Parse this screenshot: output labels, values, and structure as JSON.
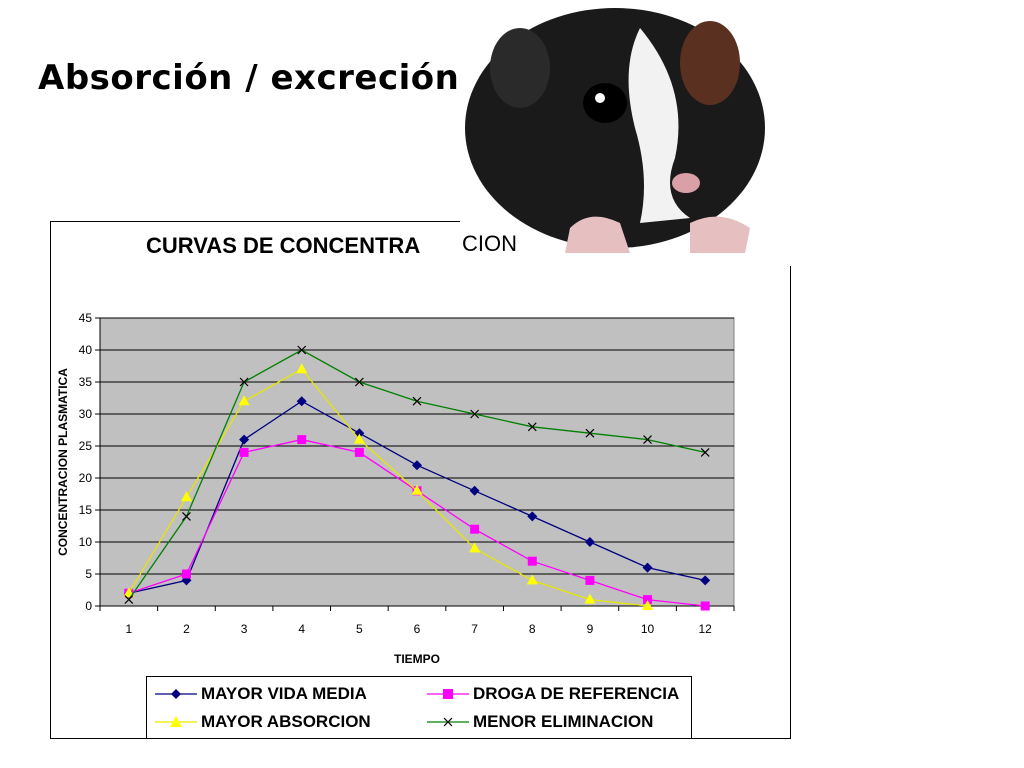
{
  "slide": {
    "title": "Absorción / excreción"
  },
  "photo": {
    "caption": "CION"
  },
  "chart_data": {
    "type": "line",
    "title": "CURVAS DE CONCENTRA",
    "xlabel": "TIEMPO",
    "ylabel": "CONCENTRACION PLASMATICA",
    "categories": [
      "1",
      "2",
      "3",
      "4",
      "5",
      "6",
      "7",
      "8",
      "9",
      "10",
      "12"
    ],
    "ylim": [
      0,
      45
    ],
    "yticks": [
      0,
      5,
      10,
      15,
      20,
      25,
      30,
      35,
      40,
      45
    ],
    "grid": true,
    "legend_position": "bottom",
    "series": [
      {
        "name": "MAYOR VIDA MEDIA",
        "color": "#000080",
        "marker": "diamond",
        "values": [
          2,
          4,
          26,
          32,
          27,
          22,
          18,
          14,
          10,
          6,
          4
        ]
      },
      {
        "name": "DROGA DE REFERENCIA",
        "color": "#ff00ff",
        "marker": "square",
        "values": [
          2,
          5,
          24,
          26,
          24,
          18,
          12,
          7,
          4,
          1,
          0
        ]
      },
      {
        "name": "MAYOR ABSORCION",
        "color": "#ffff00",
        "marker": "triangle",
        "values": [
          2,
          17,
          32,
          37,
          26,
          18,
          9,
          4,
          1,
          0,
          null
        ]
      },
      {
        "name": "MENOR ELIMINACION",
        "color": "#008000",
        "marker": "x",
        "values": [
          1,
          14,
          35,
          40,
          35,
          32,
          30,
          28,
          27,
          26,
          24
        ]
      }
    ]
  }
}
